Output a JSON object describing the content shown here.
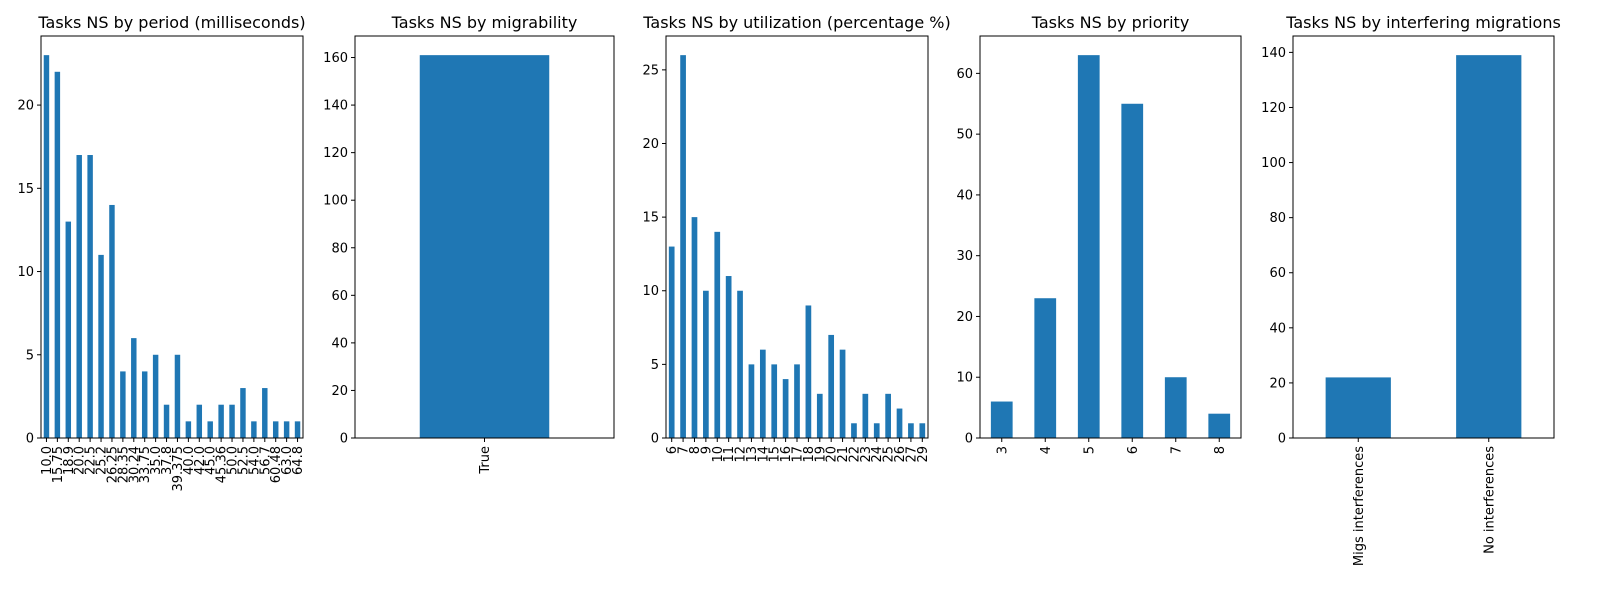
{
  "bar_color": "#1f77b4",
  "chart_data": [
    {
      "type": "bar",
      "title": "Tasks NS by period (milliseconds)",
      "categories": [
        "10.0",
        "15.75",
        "18.9",
        "20.0",
        "22.5",
        "25.2",
        "26.25",
        "28.35",
        "30.24",
        "33.75",
        "35.0",
        "37.8",
        "39.375",
        "40.0",
        "42.0",
        "45.0",
        "45.36",
        "50.0",
        "52.5",
        "54.0",
        "56.7",
        "60.48",
        "63.0",
        "64.8"
      ],
      "values": [
        23,
        22,
        13,
        17,
        17,
        11,
        14,
        4,
        6,
        4,
        5,
        2,
        5,
        1,
        2,
        1,
        2,
        2,
        3,
        1,
        3,
        1,
        1,
        1
      ],
      "ylim": [
        0,
        24.15
      ],
      "yticks": [
        0,
        5,
        10,
        15,
        20
      ],
      "xlabel": "",
      "ylabel": ""
    },
    {
      "type": "bar",
      "title": "Tasks NS by migrability",
      "categories": [
        "True"
      ],
      "values": [
        161
      ],
      "ylim": [
        0,
        169.05
      ],
      "yticks": [
        0,
        20,
        40,
        60,
        80,
        100,
        120,
        140,
        160
      ],
      "xlabel": "",
      "ylabel": ""
    },
    {
      "type": "bar",
      "title": "Tasks NS by utilization (percentage %)",
      "categories": [
        "6",
        "7",
        "8",
        "9",
        "10",
        "11",
        "12",
        "13",
        "14",
        "15",
        "16",
        "17",
        "18",
        "19",
        "20",
        "21",
        "22",
        "23",
        "24",
        "25",
        "26",
        "27",
        "29"
      ],
      "values": [
        13,
        26,
        15,
        10,
        14,
        11,
        10,
        5,
        6,
        5,
        4,
        5,
        9,
        3,
        7,
        6,
        1,
        3,
        1,
        3,
        2,
        1,
        1
      ],
      "ylim": [
        0,
        27.3
      ],
      "yticks": [
        0,
        5,
        10,
        15,
        20,
        25
      ],
      "xlabel": "",
      "ylabel": ""
    },
    {
      "type": "bar",
      "title": "Tasks NS by priority",
      "categories": [
        "3",
        "4",
        "5",
        "6",
        "7",
        "8"
      ],
      "values": [
        6,
        23,
        63,
        55,
        10,
        4
      ],
      "ylim": [
        0,
        66.15
      ],
      "yticks": [
        0,
        10,
        20,
        30,
        40,
        50,
        60
      ],
      "xlabel": "",
      "ylabel": ""
    },
    {
      "type": "bar",
      "title": "Tasks NS by interfering migrations",
      "categories": [
        "Migs interferences",
        "No interferences"
      ],
      "values": [
        22,
        139
      ],
      "ylim": [
        0,
        145.95
      ],
      "yticks": [
        0,
        20,
        40,
        60,
        80,
        100,
        120,
        140
      ],
      "xlabel": "",
      "ylabel": ""
    }
  ]
}
